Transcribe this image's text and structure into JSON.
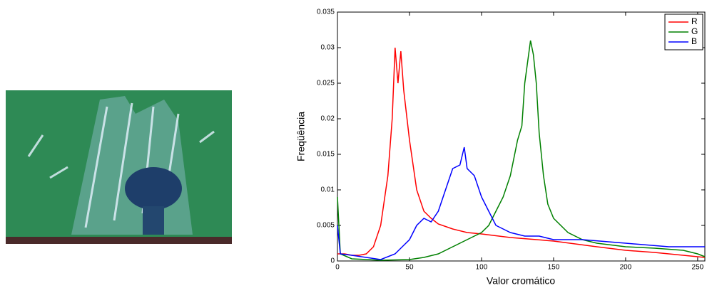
{
  "chart_data": {
    "type": "line",
    "xlabel": "Valor cromático",
    "ylabel": "Freqüência",
    "xlim": [
      0,
      255
    ],
    "ylim": [
      0,
      0.035
    ],
    "xticks": [
      0,
      50,
      100,
      150,
      200,
      250
    ],
    "yticks": [
      0,
      0.005,
      0.01,
      0.015,
      0.02,
      0.025,
      0.03,
      0.035
    ],
    "legend": "upper right",
    "series": [
      {
        "name": "R",
        "color": "#ff0000",
        "x": [
          0,
          5,
          10,
          15,
          20,
          25,
          30,
          35,
          38,
          40,
          42,
          44,
          46,
          50,
          55,
          60,
          65,
          70,
          80,
          90,
          100,
          120,
          150,
          180,
          200,
          220,
          240,
          255
        ],
        "values": [
          0.001,
          0.001,
          0.0008,
          0.0008,
          0.001,
          0.002,
          0.005,
          0.012,
          0.02,
          0.03,
          0.025,
          0.0295,
          0.024,
          0.017,
          0.01,
          0.007,
          0.006,
          0.0052,
          0.0045,
          0.004,
          0.0038,
          0.0033,
          0.0028,
          0.002,
          0.0015,
          0.0012,
          0.0008,
          0.0005
        ]
      },
      {
        "name": "G",
        "color": "#008000",
        "x": [
          0,
          2,
          10,
          30,
          50,
          60,
          70,
          80,
          90,
          100,
          105,
          110,
          115,
          120,
          125,
          128,
          130,
          132,
          134,
          136,
          138,
          140,
          143,
          146,
          150,
          160,
          170,
          180,
          200,
          220,
          240,
          250,
          255
        ],
        "values": [
          0.009,
          0.001,
          0.0003,
          0.0001,
          0.0002,
          0.0005,
          0.001,
          0.002,
          0.003,
          0.004,
          0.005,
          0.007,
          0.009,
          0.012,
          0.017,
          0.019,
          0.025,
          0.028,
          0.031,
          0.029,
          0.025,
          0.018,
          0.012,
          0.008,
          0.006,
          0.004,
          0.003,
          0.0025,
          0.002,
          0.0018,
          0.0015,
          0.001,
          0.0006
        ]
      },
      {
        "name": "B",
        "color": "#0000ff",
        "x": [
          0,
          2,
          10,
          20,
          30,
          40,
          45,
          50,
          55,
          60,
          65,
          70,
          75,
          80,
          85,
          88,
          90,
          95,
          100,
          105,
          110,
          115,
          120,
          130,
          140,
          150,
          170,
          200,
          230,
          255
        ],
        "values": [
          0.005,
          0.001,
          0.0008,
          0.0005,
          0.0002,
          0.001,
          0.002,
          0.003,
          0.005,
          0.006,
          0.0055,
          0.007,
          0.01,
          0.013,
          0.0135,
          0.016,
          0.013,
          0.012,
          0.009,
          0.007,
          0.005,
          0.0045,
          0.004,
          0.0035,
          0.0035,
          0.003,
          0.003,
          0.0025,
          0.002,
          0.002
        ]
      }
    ]
  }
}
